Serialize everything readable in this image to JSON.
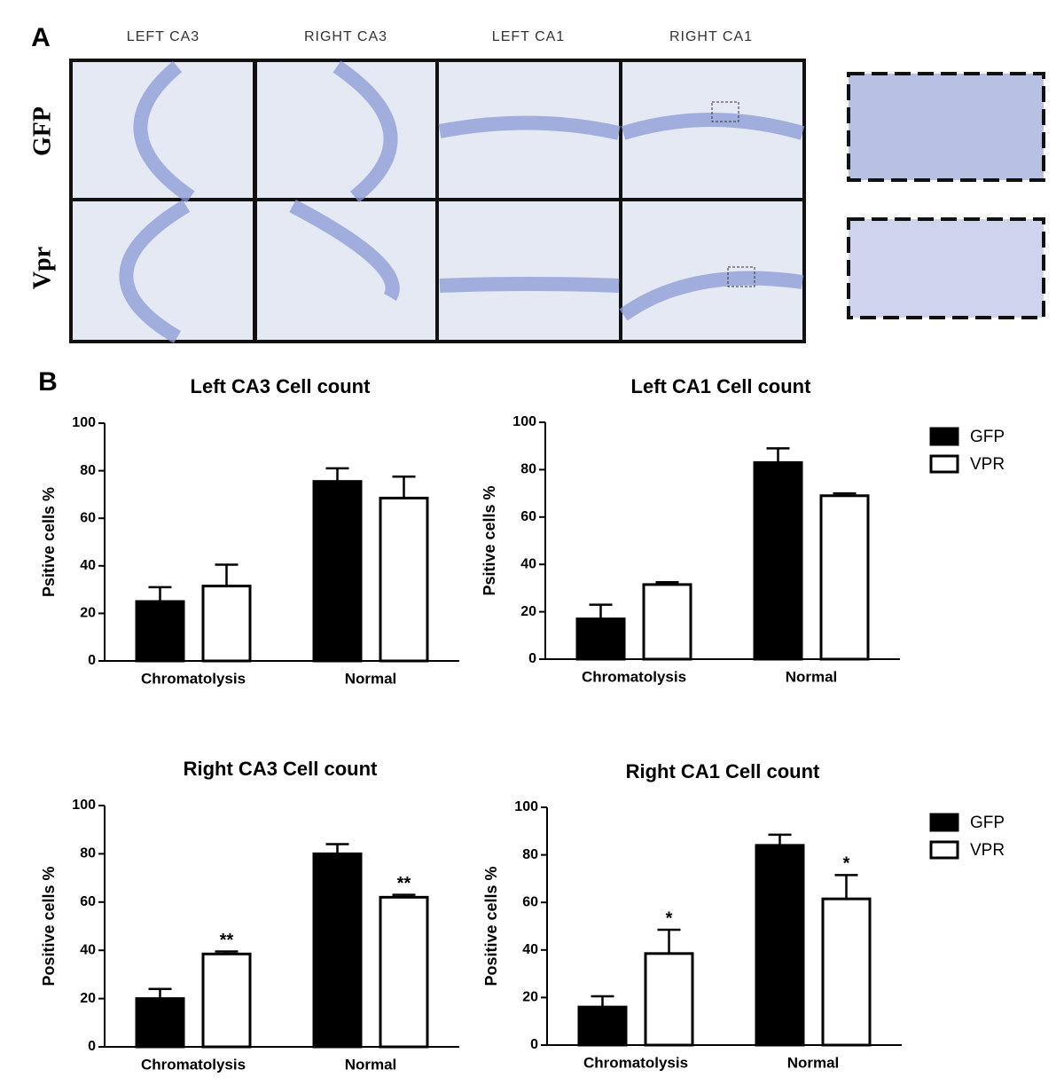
{
  "panel_labels": [
    "A",
    "B"
  ],
  "micrograph": {
    "columns": [
      "LEFT CA3",
      "RIGHT CA3",
      "LEFT CA1",
      "RIGHT CA1"
    ],
    "rows": [
      "GFP",
      "Vpr"
    ]
  },
  "chart_data": [
    {
      "type": "bar",
      "title": "Left CA3 Cell count",
      "y_label": "Psitive cells %",
      "categories": [
        "Chromatolysis",
        "Normal"
      ],
      "ylim": [
        0,
        100
      ],
      "yticks": [
        0,
        20,
        40,
        60,
        80,
        100
      ],
      "legend": false,
      "series": [
        {
          "name": "GFP",
          "color": "#000000",
          "values": [
            25,
            75.5
          ],
          "errors": [
            6,
            5.5
          ]
        },
        {
          "name": "VPR",
          "color": "#ffffff",
          "values": [
            31.5,
            68.5
          ],
          "errors": [
            9,
            9
          ]
        }
      ]
    },
    {
      "type": "bar",
      "title": "Left CA1 Cell count",
      "y_label": "Psitive cells %",
      "categories": [
        "Chromatolysis",
        "Normal"
      ],
      "ylim": [
        0,
        100
      ],
      "yticks": [
        0,
        20,
        40,
        60,
        80,
        100
      ],
      "legend": true,
      "series": [
        {
          "name": "GFP",
          "color": "#000000",
          "values": [
            17,
            83
          ],
          "errors": [
            6,
            6
          ]
        },
        {
          "name": "VPR",
          "color": "#ffffff",
          "values": [
            31.5,
            69
          ],
          "errors": [
            1,
            1
          ]
        }
      ]
    },
    {
      "type": "bar",
      "title": "Right CA3 Cell count",
      "y_label": "Positive cells %",
      "categories": [
        "Chromatolysis",
        "Normal"
      ],
      "ylim": [
        0,
        100
      ],
      "yticks": [
        0,
        20,
        40,
        60,
        80,
        100
      ],
      "legend": false,
      "series": [
        {
          "name": "GFP",
          "color": "#000000",
          "values": [
            20,
            80
          ],
          "errors": [
            4,
            4
          ]
        },
        {
          "name": "VPR",
          "color": "#ffffff",
          "values": [
            38.5,
            62
          ],
          "errors": [
            1,
            1
          ],
          "significance": [
            "**",
            "**"
          ]
        }
      ]
    },
    {
      "type": "bar",
      "title": "Right CA1 Cell count",
      "y_label": "Positive cells %",
      "categories": [
        "Chromatolysis",
        "Normal"
      ],
      "ylim": [
        0,
        100
      ],
      "yticks": [
        0,
        20,
        40,
        60,
        80,
        100
      ],
      "legend": true,
      "series": [
        {
          "name": "GFP",
          "color": "#000000",
          "values": [
            16,
            84
          ],
          "errors": [
            4.5,
            4.5
          ]
        },
        {
          "name": "VPR",
          "color": "#ffffff",
          "values": [
            38.5,
            61.5
          ],
          "errors": [
            10,
            10
          ],
          "significance": [
            "*",
            "*"
          ]
        }
      ]
    }
  ]
}
